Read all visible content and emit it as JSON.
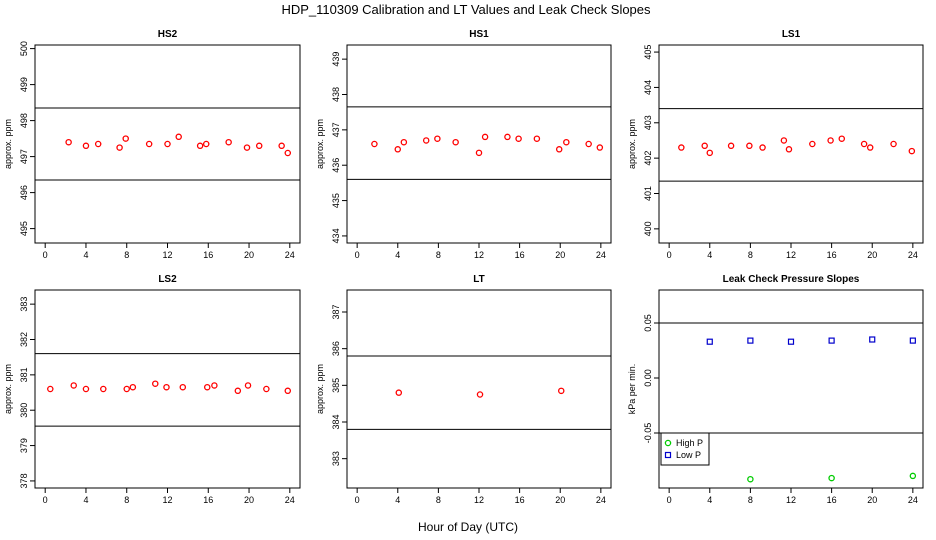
{
  "figure": {
    "title": "HDP_110309  Calibration and LT Values and Leak Check Slopes",
    "xlabel": "Hour of Day (UTC)"
  },
  "chart_data": [
    {
      "type": "scatter",
      "title": "HS2",
      "ylabel": "approx. ppm",
      "xlim": [
        -1,
        25
      ],
      "ylim": [
        494.6,
        500.1
      ],
      "xticks": [
        "0",
        "4",
        "8",
        "12",
        "16",
        "20",
        "24"
      ],
      "yticks": [
        "495",
        "496",
        "497",
        "498",
        "499",
        "500"
      ],
      "hlines": [
        498.35,
        496.35
      ],
      "series": [
        {
          "name": "HS2",
          "color": "#ff0000",
          "x": [
            2.3,
            4.0,
            5.2,
            7.3,
            7.9,
            10.2,
            12.0,
            13.1,
            15.2,
            15.8,
            18.0,
            19.8,
            21.0,
            23.2,
            23.8
          ],
          "y": [
            497.4,
            497.3,
            497.35,
            497.25,
            497.5,
            497.35,
            497.35,
            497.55,
            497.3,
            497.35,
            497.4,
            497.25,
            497.3,
            497.3,
            497.1
          ]
        }
      ]
    },
    {
      "type": "scatter",
      "title": "HS1",
      "ylabel": "approx. ppm",
      "xlim": [
        -1,
        25
      ],
      "ylim": [
        433.8,
        439.4
      ],
      "xticks": [
        "0",
        "4",
        "8",
        "12",
        "16",
        "20",
        "24"
      ],
      "yticks": [
        "434",
        "435",
        "436",
        "437",
        "438",
        "439"
      ],
      "hlines": [
        437.65,
        435.6
      ],
      "series": [
        {
          "name": "HS1",
          "color": "#ff0000",
          "x": [
            1.7,
            4.0,
            4.6,
            6.8,
            7.9,
            9.7,
            12.0,
            12.6,
            14.8,
            15.9,
            17.7,
            19.9,
            20.6,
            22.8,
            23.9
          ],
          "y": [
            436.6,
            436.45,
            436.65,
            436.7,
            436.75,
            436.65,
            436.35,
            436.8,
            436.8,
            436.75,
            436.75,
            436.45,
            436.65,
            436.6,
            436.5
          ]
        }
      ]
    },
    {
      "type": "scatter",
      "title": "LS1",
      "ylabel": "approx. ppm",
      "xlim": [
        -1,
        25
      ],
      "ylim": [
        399.6,
        405.2
      ],
      "xticks": [
        "0",
        "4",
        "8",
        "12",
        "16",
        "20",
        "24"
      ],
      "yticks": [
        "400",
        "401",
        "402",
        "403",
        "404",
        "405"
      ],
      "hlines": [
        403.4,
        401.35
      ],
      "series": [
        {
          "name": "LS1",
          "color": "#ff0000",
          "x": [
            1.2,
            3.5,
            4.0,
            6.1,
            7.9,
            9.2,
            11.3,
            11.8,
            14.1,
            15.9,
            17.0,
            19.2,
            19.8,
            22.1,
            23.9
          ],
          "y": [
            402.3,
            402.35,
            402.15,
            402.35,
            402.35,
            402.3,
            402.5,
            402.25,
            402.4,
            402.5,
            402.55,
            402.4,
            402.3,
            402.4,
            402.2
          ]
        }
      ]
    },
    {
      "type": "scatter",
      "title": "LS2",
      "ylabel": "approx. ppm",
      "xlim": [
        -1,
        25
      ],
      "ylim": [
        377.8,
        383.4
      ],
      "xticks": [
        "0",
        "4",
        "8",
        "12",
        "16",
        "20",
        "24"
      ],
      "yticks": [
        "378",
        "379",
        "380",
        "381",
        "382",
        "383"
      ],
      "hlines": [
        381.6,
        379.55
      ],
      "series": [
        {
          "name": "LS2",
          "color": "#ff0000",
          "x": [
            0.5,
            2.8,
            4.0,
            5.7,
            8.0,
            8.6,
            10.8,
            11.9,
            13.5,
            15.9,
            16.6,
            18.9,
            19.9,
            21.7,
            23.8
          ],
          "y": [
            380.6,
            380.7,
            380.6,
            380.6,
            380.6,
            380.65,
            380.75,
            380.65,
            380.65,
            380.65,
            380.7,
            380.55,
            380.7,
            380.6,
            380.55
          ]
        }
      ]
    },
    {
      "type": "scatter",
      "title": "LT",
      "ylabel": "approx. ppm",
      "xlim": [
        -1,
        25
      ],
      "ylim": [
        382.2,
        387.6
      ],
      "xticks": [
        "0",
        "4",
        "8",
        "12",
        "16",
        "20",
        "24"
      ],
      "yticks": [
        "383",
        "384",
        "385",
        "386",
        "387"
      ],
      "hlines": [
        385.8,
        383.8
      ],
      "series": [
        {
          "name": "LT",
          "color": "#ff0000",
          "x": [
            4.1,
            12.1,
            20.1
          ],
          "y": [
            384.8,
            384.75,
            384.85
          ]
        }
      ]
    },
    {
      "type": "scatter",
      "title": "Leak Check Pressure Slopes",
      "ylabel": "kPa per min.",
      "xlim": [
        -1,
        25
      ],
      "ylim": [
        -0.1,
        0.08
      ],
      "xticks": [
        "0",
        "4",
        "8",
        "12",
        "16",
        "20",
        "24"
      ],
      "yticks": [
        "-0.05",
        "0.00",
        "0.05"
      ],
      "hlines": [
        0.05,
        -0.05
      ],
      "legend": {
        "position": "bottom-left",
        "entries": [
          "High P",
          "Low P"
        ]
      },
      "series": [
        {
          "name": "High P",
          "color": "#00cc00",
          "x": [
            8.0,
            16.0,
            24.0
          ],
          "y": [
            -0.092,
            -0.091,
            -0.089
          ]
        },
        {
          "name": "Low P",
          "color": "#0000cc",
          "x": [
            4.0,
            8.0,
            12.0,
            16.0,
            20.0,
            24.0
          ],
          "y": [
            0.033,
            0.034,
            0.033,
            0.034,
            0.035,
            0.034
          ]
        }
      ]
    }
  ]
}
